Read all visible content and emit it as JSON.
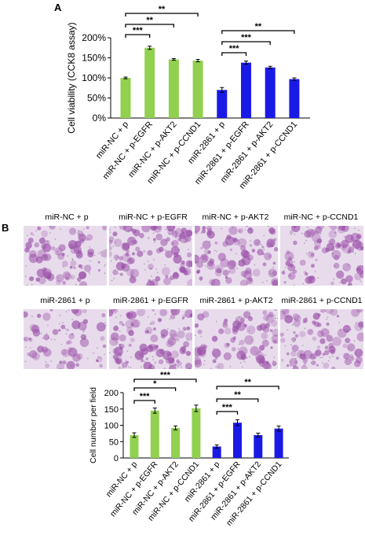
{
  "panels": {
    "a_label": "A",
    "b_label": "B"
  },
  "colors": {
    "green": "#92D050",
    "blue": "#1A1AE6",
    "stain": "#9A4FA8",
    "background": "#E8DCEC"
  },
  "images": {
    "captions_top": [
      "miR-NC + p",
      "miR-NC + p-EGFR",
      "miR-NC + p-AKT2",
      "miR-NC + p-CCND1"
    ],
    "captions_bottom": [
      "miR-2861 + p",
      "miR-2861 + p-EGFR",
      "miR-2861 + p-AKT2",
      "miR-2861 + p-CCND1"
    ],
    "stain_density": [
      0.45,
      0.7,
      0.6,
      0.55,
      0.25,
      0.8,
      0.45,
      0.55
    ]
  },
  "chart_data": [
    {
      "type": "bar",
      "panel": "A",
      "title": "",
      "xlabel": "",
      "ylabel": "Cell viability (CCK8 assay)",
      "ylim": [
        0,
        200
      ],
      "yticks": [
        0,
        50,
        100,
        150,
        200
      ],
      "ytick_labels": [
        "0%",
        "50%",
        "100%",
        "150%",
        "200%"
      ],
      "categories": [
        "miR-NC + p",
        "miR-NC + p-EGFR",
        "miR-NC + p-AKT2",
        "miR-NC + p-CCND1",
        "miR-2861 + p",
        "miR-2861 + p-EGFR",
        "miR-2861 + p-AKT2",
        "miR-2861 + p-CCND1"
      ],
      "values": [
        100,
        175,
        146,
        143,
        70,
        138,
        126,
        97
      ],
      "errors": [
        2,
        4,
        2,
        3,
        6,
        4,
        3,
        3
      ],
      "bar_colors": [
        "green",
        "green",
        "green",
        "green",
        "blue",
        "blue",
        "blue",
        "blue"
      ],
      "brackets": [
        {
          "from": 0,
          "to": 1,
          "label": "***"
        },
        {
          "from": 0,
          "to": 2,
          "label": "**"
        },
        {
          "from": 0,
          "to": 3,
          "label": "**"
        },
        {
          "from": 4,
          "to": 5,
          "label": "***"
        },
        {
          "from": 4,
          "to": 6,
          "label": "***"
        },
        {
          "from": 4,
          "to": 7,
          "label": "**"
        }
      ]
    },
    {
      "type": "bar",
      "panel": "B",
      "title": "",
      "xlabel": "",
      "ylabel": "Cell number per field",
      "ylim": [
        0,
        200
      ],
      "yticks": [
        0,
        50,
        100,
        150,
        200
      ],
      "ytick_labels": [
        "0",
        "50",
        "100",
        "150",
        "200"
      ],
      "categories": [
        "miR-NC + p",
        "miR-NC + p-EGFR",
        "miR-NC + p-AKT2",
        "miR-NC + p-CCND1",
        "miR-2861 + p",
        "miR-2861 + p-EGFR",
        "miR-2861 + p-AKT2",
        "miR-2861 + p-CCND1"
      ],
      "values": [
        70,
        145,
        92,
        152,
        35,
        108,
        70,
        90
      ],
      "errors": [
        7,
        8,
        6,
        10,
        5,
        9,
        6,
        8
      ],
      "bar_colors": [
        "green",
        "green",
        "green",
        "green",
        "blue",
        "blue",
        "blue",
        "blue"
      ],
      "brackets": [
        {
          "from": 0,
          "to": 1,
          "label": "***"
        },
        {
          "from": 0,
          "to": 2,
          "label": "*"
        },
        {
          "from": 0,
          "to": 3,
          "label": "***"
        },
        {
          "from": 4,
          "to": 5,
          "label": "***"
        },
        {
          "from": 4,
          "to": 6,
          "label": "**"
        },
        {
          "from": 4,
          "to": 7,
          "label": "**"
        }
      ]
    }
  ]
}
